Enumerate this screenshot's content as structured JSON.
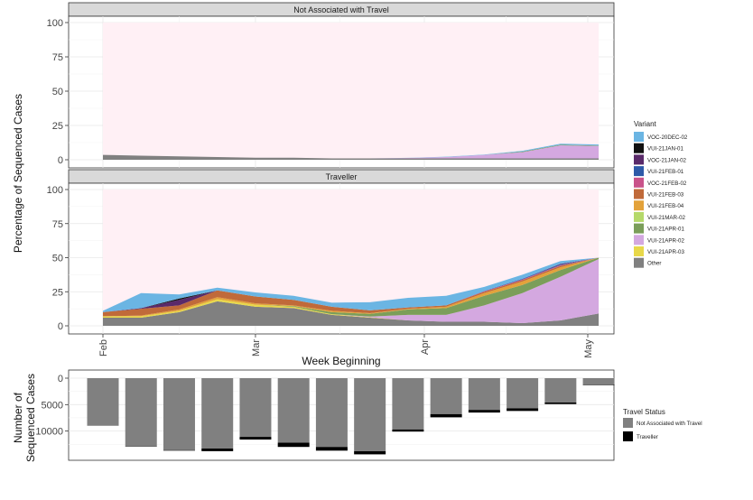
{
  "chart_data": [
    {
      "type": "area",
      "stacked": true,
      "y_label": "Percentage of Sequenced Cases",
      "x_label": "Week Beginning",
      "x_ticks": [
        "Feb",
        "Mar",
        "Apr",
        "May"
      ],
      "x_tick_dates": [
        "2021-02-01",
        "2021-03-01",
        "2021-04-01",
        "2021-05-01"
      ],
      "y_ticks": [
        0,
        25,
        50,
        75,
        100
      ],
      "ylim": [
        0,
        100
      ],
      "weeks": [
        "2021-02-01",
        "2021-02-08",
        "2021-02-15",
        "2021-02-22",
        "2021-03-01",
        "2021-03-08",
        "2021-03-15",
        "2021-03-22",
        "2021-03-29",
        "2021-04-05",
        "2021-04-12",
        "2021-04-19",
        "2021-04-26",
        "2021-05-03"
      ],
      "legend_title": "Variant",
      "legend_position": "right",
      "background_color": "#fff0f5",
      "panels": [
        {
          "title": "Not Associated with Travel",
          "series": [
            {
              "name": "Other",
              "color": "#808080",
              "values": [
                3.5,
                3,
                2.5,
                2,
                1.5,
                1.5,
                1,
                1,
                1,
                1,
                1,
                1,
                1,
                1
              ]
            },
            {
              "name": "VUI-21APR-02",
              "color": "#d4a8e0",
              "values": [
                0,
                0,
                0,
                0,
                0,
                0,
                0,
                0,
                0.3,
                1,
                2.5,
                4.5,
                9.5,
                9
              ]
            },
            {
              "name": "VUI-21APR-01",
              "color": "#7b9e5a",
              "values": [
                0,
                0,
                0,
                0,
                0,
                0,
                0,
                0,
                0,
                0,
                0,
                0.4,
                0.4,
                0.4
              ]
            },
            {
              "name": "VOC-20DEC-02",
              "color": "#6bb5e3",
              "values": [
                0,
                0,
                0,
                0,
                0,
                0,
                0,
                0,
                0.1,
                0.2,
                0.3,
                0.6,
                0.8,
                0.7
              ]
            }
          ]
        },
        {
          "title": "Traveller",
          "series": [
            {
              "name": "Other",
              "color": "#808080",
              "values": [
                6,
                6,
                10,
                18,
                14,
                13,
                8,
                6,
                4,
                3,
                3,
                2,
                4,
                9
              ]
            },
            {
              "name": "VUI-21APR-03",
              "color": "#e8d84a",
              "values": [
                1,
                1,
                1,
                1.5,
                1.5,
                1,
                0.5,
                0.3,
                0,
                0,
                0,
                0,
                0,
                0
              ]
            },
            {
              "name": "VUI-21APR-02",
              "color": "#d4a8e0",
              "values": [
                0,
                0,
                0,
                0,
                0,
                0,
                0,
                0.5,
                4,
                5,
                12,
                22,
                32,
                40
              ]
            },
            {
              "name": "VUI-21APR-01",
              "color": "#7b9e5a",
              "values": [
                0,
                0,
                0,
                0,
                0,
                0.5,
                1.5,
                2,
                4,
                5,
                7,
                6,
                5,
                1
              ]
            },
            {
              "name": "VUI-21FEB-04",
              "color": "#e3a23a",
              "values": [
                0,
                0.5,
                1,
                1.5,
                1,
                0.5,
                1,
                0.5,
                0.5,
                1,
                2,
                2.5,
                2,
                0
              ]
            },
            {
              "name": "VUI-21FEB-03",
              "color": "#c06a3a",
              "values": [
                3,
                5,
                3,
                5,
                5,
                4,
                3,
                2,
                1,
                1,
                1,
                1,
                1,
                0
              ]
            },
            {
              "name": "VOC-21FEB-02",
              "color": "#c9538a",
              "values": [
                0,
                0,
                0,
                0,
                0,
                0,
                0,
                0,
                0,
                0,
                0.3,
                0.5,
                0.5,
                0
              ]
            },
            {
              "name": "VUI-21FEB-01",
              "color": "#2e5aa8",
              "values": [
                0,
                0,
                0,
                0,
                0,
                0,
                0,
                0,
                0,
                0,
                0.3,
                0.5,
                0.5,
                0
              ]
            },
            {
              "name": "VOC-21JAN-02",
              "color": "#5a2a6a",
              "values": [
                0,
                0.5,
                4,
                0,
                0,
                0,
                0,
                0,
                0,
                0,
                0,
                0,
                0.5,
                0
              ]
            },
            {
              "name": "VUI-21JAN-01",
              "color": "#111111",
              "values": [
                0,
                0,
                1,
                0,
                0,
                0,
                0,
                0,
                0,
                0,
                0,
                0,
                0,
                0
              ]
            },
            {
              "name": "VOC-20DEC-02",
              "color": "#6bb5e3",
              "values": [
                1,
                11,
                3,
                2,
                3,
                3,
                3,
                6,
                7,
                7,
                3,
                3,
                2,
                0
              ]
            }
          ]
        }
      ],
      "legend": [
        {
          "name": "VOC-20DEC-02",
          "color": "#6bb5e3"
        },
        {
          "name": "VUI-21JAN-01",
          "color": "#111111"
        },
        {
          "name": "VOC-21JAN-02",
          "color": "#5a2a6a"
        },
        {
          "name": "VUI-21FEB-01",
          "color": "#2e5aa8"
        },
        {
          "name": "VOC-21FEB-02",
          "color": "#c9538a"
        },
        {
          "name": "VUI-21FEB-03",
          "color": "#c06a3a"
        },
        {
          "name": "VUI-21FEB-04",
          "color": "#e3a23a"
        },
        {
          "name": "VUI-21MAR-02",
          "color": "#b5d96a"
        },
        {
          "name": "VUI-21APR-01",
          "color": "#7b9e5a"
        },
        {
          "name": "VUI-21APR-02",
          "color": "#d4a8e0"
        },
        {
          "name": "VUI-21APR-03",
          "color": "#e8d84a"
        },
        {
          "name": "Other",
          "color": "#808080"
        }
      ]
    },
    {
      "type": "bar",
      "stacked": true,
      "orientation": "downward",
      "y_label": "Number of\nSequenced Cases",
      "y_ticks": [
        0,
        5000,
        10000
      ],
      "ylim": [
        0,
        14500
      ],
      "categories": [
        "2021-02-01",
        "2021-02-08",
        "2021-02-15",
        "2021-02-22",
        "2021-03-01",
        "2021-03-08",
        "2021-03-15",
        "2021-03-22",
        "2021-03-29",
        "2021-04-05",
        "2021-04-12",
        "2021-04-19",
        "2021-04-26",
        "2021-05-03"
      ],
      "legend_title": "Travel Status",
      "series": [
        {
          "name": "Not Associated with Travel",
          "color": "#808080",
          "values": [
            9000,
            12800,
            13600,
            13300,
            11100,
            12200,
            13000,
            13800,
            9700,
            6800,
            6000,
            5700,
            4600,
            1200
          ]
        },
        {
          "name": "Traveller",
          "color": "#000000",
          "values": [
            0,
            100,
            100,
            500,
            500,
            800,
            700,
            600,
            400,
            600,
            500,
            500,
            300,
            100
          ]
        }
      ],
      "legend": [
        {
          "name": "Not Associated with Travel",
          "color": "#808080"
        },
        {
          "name": "Traveller",
          "color": "#000000"
        }
      ]
    }
  ]
}
